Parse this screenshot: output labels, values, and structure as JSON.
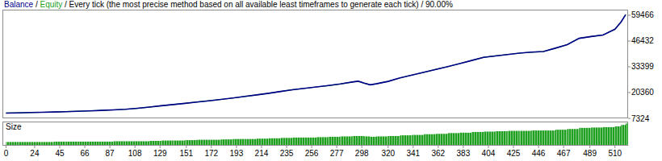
{
  "chart_data": [
    {
      "type": "line",
      "title": "/ Every tick (the most precise method based on all available least timeframes to generate each tick) / 90.00%",
      "annotations": [
        "/"
      ],
      "x": [
        0,
        10,
        20,
        30,
        40,
        50,
        60,
        70,
        80,
        90,
        100,
        110,
        120,
        130,
        140,
        150,
        160,
        170,
        180,
        190,
        200,
        210,
        220,
        230,
        240,
        250,
        260,
        270,
        280,
        290,
        295,
        300,
        305,
        310,
        320,
        330,
        340,
        350,
        360,
        370,
        380,
        390,
        400,
        410,
        420,
        430,
        440,
        450,
        460,
        470,
        480,
        490,
        500,
        510,
        515,
        519
      ],
      "series": [
        {
          "name": "Balance",
          "color": "#00008b",
          "values": [
            10000,
            10100,
            10250,
            10380,
            10550,
            10700,
            10900,
            11100,
            11350,
            11600,
            11900,
            12400,
            13000,
            13700,
            14300,
            14900,
            15600,
            16200,
            16900,
            17600,
            18400,
            19200,
            20000,
            20900,
            21800,
            22500,
            23200,
            23900,
            24700,
            25700,
            26100,
            25100,
            24300,
            24800,
            26000,
            27800,
            29200,
            30600,
            32100,
            33500,
            35000,
            36600,
            38200,
            38900,
            39600,
            40300,
            40800,
            41100,
            42800,
            44600,
            47800,
            48700,
            49500,
            52400,
            56000,
            59800
          ]
        },
        {
          "name": "Equity",
          "color": "#20a020",
          "values": [
            10000,
            10100,
            10250,
            10380,
            10550,
            10700,
            10900,
            11100,
            11350,
            11600,
            11900,
            12400,
            13000,
            13700,
            14300,
            14900,
            15600,
            16200,
            16900,
            17600,
            18400,
            19200,
            20000,
            20900,
            21800,
            22500,
            23200,
            23900,
            24700,
            25700,
            26100,
            25100,
            24300,
            24800,
            26000,
            27800,
            29200,
            30600,
            32100,
            33500,
            35000,
            36600,
            38200,
            38900,
            39600,
            40300,
            40800,
            41100,
            42800,
            44600,
            47800,
            48700,
            49500,
            52400,
            56000,
            59800
          ]
        }
      ],
      "xlim": [
        -3,
        521
      ],
      "xticks": [
        0,
        24,
        45,
        66,
        87,
        108,
        129,
        151,
        172,
        193,
        214,
        235,
        256,
        277,
        298,
        320,
        341,
        362,
        383,
        404,
        425,
        446,
        467,
        489,
        510
      ],
      "ylim": [
        7324,
        62300
      ],
      "yticks": [
        7324,
        20360,
        33399,
        46432,
        59466
      ],
      "grid": false
    },
    {
      "type": "bar",
      "title": "Size",
      "color": "#20a020",
      "x": [
        0,
        10,
        20,
        30,
        40,
        50,
        60,
        70,
        80,
        90,
        100,
        110,
        120,
        130,
        140,
        150,
        160,
        170,
        180,
        190,
        200,
        210,
        220,
        230,
        240,
        250,
        260,
        270,
        280,
        290,
        295,
        300,
        305,
        310,
        320,
        330,
        340,
        350,
        360,
        370,
        380,
        390,
        400,
        410,
        420,
        430,
        440,
        450,
        460,
        470,
        480,
        490,
        500,
        510,
        515,
        519
      ],
      "values": [
        0.1,
        0.1,
        0.1,
        0.1,
        0.11,
        0.11,
        0.11,
        0.11,
        0.11,
        0.12,
        0.12,
        0.12,
        0.13,
        0.14,
        0.14,
        0.15,
        0.16,
        0.16,
        0.17,
        0.18,
        0.18,
        0.19,
        0.2,
        0.21,
        0.22,
        0.22,
        0.23,
        0.24,
        0.25,
        0.26,
        0.26,
        0.25,
        0.24,
        0.25,
        0.26,
        0.28,
        0.29,
        0.31,
        0.32,
        0.34,
        0.35,
        0.37,
        0.38,
        0.39,
        0.4,
        0.4,
        0.41,
        0.41,
        0.43,
        0.45,
        0.48,
        0.49,
        0.5,
        0.52,
        0.56,
        0.6
      ],
      "xlim": [
        -3,
        521
      ],
      "ylim": [
        0,
        0.65
      ],
      "tick_labels": false
    }
  ]
}
